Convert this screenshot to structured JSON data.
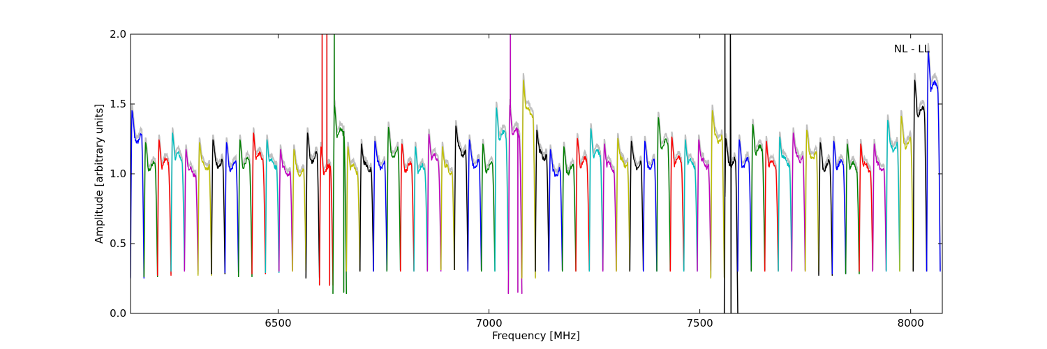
{
  "chart_data": {
    "type": "line",
    "title": "",
    "xlabel": "Frequency [MHz]",
    "ylabel": "Amplitude [arbitrary units]",
    "xlim": [
      6150,
      8075
    ],
    "ylim": [
      0.0,
      2.0
    ],
    "xticks": [
      6500,
      7000,
      7500,
      8000
    ],
    "xtick_labels": [
      "6500",
      "7000",
      "7500",
      "8000"
    ],
    "yticks": [
      0.0,
      0.5,
      1.0,
      1.5,
      2.0
    ],
    "ytick_labels": [
      "0.0",
      "0.5",
      "1.0",
      "1.5",
      "2.0"
    ],
    "grid": false,
    "annotation": "NL - LL",
    "background_color": "#c0c0c0",
    "color_cycle": [
      "#0000ff",
      "#008000",
      "#ff0000",
      "#00bfbf",
      "#bf00bf",
      "#bfbf00",
      "#000000"
    ],
    "channel_width_mhz": 32,
    "band_start_mhz": 6150,
    "channels": [
      {
        "color": "#0000ff",
        "peak": 1.46,
        "low": 0.25
      },
      {
        "color": "#008000",
        "peak": 1.23,
        "low": 0.26
      },
      {
        "color": "#ff0000",
        "peak": 1.25,
        "low": 0.27
      },
      {
        "color": "#00bfbf",
        "peak": 1.3,
        "low": 0.3
      },
      {
        "color": "#bf00bf",
        "peak": 1.18,
        "low": 0.3
      },
      {
        "color": "#bfbf00",
        "peak": 1.23,
        "low": 0.27
      },
      {
        "color": "#000000",
        "peak": 1.25,
        "low": 0.28
      },
      {
        "color": "#0000ff",
        "peak": 1.23,
        "low": 0.29
      },
      {
        "color": "#008000",
        "peak": 1.25,
        "low": 0.26
      },
      {
        "color": "#ff0000",
        "peak": 1.3,
        "low": 0.28
      },
      {
        "color": "#00bfbf",
        "peak": 1.25,
        "low": 0.29
      },
      {
        "color": "#bf00bf",
        "peak": 1.18,
        "low": 0.3
      },
      {
        "color": "#bfbf00",
        "peak": 1.18,
        "low": 0.3
      },
      {
        "color": "#000000",
        "peak": 1.3,
        "low": 0.25
      },
      {
        "color": "#ff0000",
        "peak": 1.2,
        "low": 0.2,
        "spikes": [
          {
            "pos": 0.2,
            "value": 2.0
          },
          {
            "pos": 0.55,
            "value": 2.0
          },
          {
            "pos": 0.75,
            "value": 0.2
          }
        ]
      },
      {
        "color": "#008000",
        "peak": 1.5,
        "low": 0.14,
        "spikes": [
          {
            "pos": 0.1,
            "value": 2.0
          },
          {
            "pos": 0.8,
            "value": 0.15
          }
        ]
      },
      {
        "color": "#bfbf00",
        "peak": 1.2,
        "low": 0.3
      },
      {
        "color": "#000000",
        "peak": 1.22,
        "low": 0.3
      },
      {
        "color": "#0000ff",
        "peak": 1.24,
        "low": 0.3
      },
      {
        "color": "#008000",
        "peak": 1.34,
        "low": 0.3
      },
      {
        "color": "#ff0000",
        "peak": 1.22,
        "low": 0.3
      },
      {
        "color": "#00bfbf",
        "peak": 1.2,
        "low": 0.3
      },
      {
        "color": "#bf00bf",
        "peak": 1.29,
        "low": 0.3
      },
      {
        "color": "#bfbf00",
        "peak": 1.2,
        "low": 0.31
      },
      {
        "color": "#000000",
        "peak": 1.35,
        "low": 0.31
      },
      {
        "color": "#0000ff",
        "peak": 1.25,
        "low": 0.3
      },
      {
        "color": "#008000",
        "peak": 1.22,
        "low": 0.3
      },
      {
        "color": "#00bfbf",
        "peak": 1.48,
        "low": 0.3
      },
      {
        "color": "#bf00bf",
        "peak": 1.5,
        "low": 0.14,
        "spikes": [
          {
            "pos": 0.15,
            "value": 2.0
          },
          {
            "pos": 0.7,
            "value": 0.15
          }
        ]
      },
      {
        "color": "#bfbf00",
        "peak": 1.68,
        "low": 0.25
      },
      {
        "color": "#000000",
        "peak": 1.32,
        "low": 0.3
      },
      {
        "color": "#0000ff",
        "peak": 1.18,
        "low": 0.3
      },
      {
        "color": "#008000",
        "peak": 1.2,
        "low": 0.3
      },
      {
        "color": "#ff0000",
        "peak": 1.26,
        "low": 0.3
      },
      {
        "color": "#00bfbf",
        "peak": 1.33,
        "low": 0.3
      },
      {
        "color": "#bf00bf",
        "peak": 1.22,
        "low": 0.3
      },
      {
        "color": "#bfbf00",
        "peak": 1.26,
        "low": 0.3
      },
      {
        "color": "#000000",
        "peak": 1.24,
        "low": 0.3
      },
      {
        "color": "#0000ff",
        "peak": 1.24,
        "low": 0.3
      },
      {
        "color": "#008000",
        "peak": 1.41,
        "low": 0.3
      },
      {
        "color": "#ff0000",
        "peak": 1.27,
        "low": 0.3
      },
      {
        "color": "#00bfbf",
        "peak": 1.25,
        "low": 0.3
      },
      {
        "color": "#bf00bf",
        "peak": 1.25,
        "low": 0.3
      },
      {
        "color": "#bfbf00",
        "peak": 1.46,
        "low": 0.25
      },
      {
        "color": "#000000",
        "peak": 1.26,
        "low": 0.0,
        "spikes": [
          {
            "pos": 0.05,
            "value": 2.0
          },
          {
            "pos": 0.45,
            "value": 2.0
          },
          {
            "pos": 0.5,
            "value": 0.0
          }
        ]
      },
      {
        "color": "#0000ff",
        "peak": 1.25,
        "low": 0.3
      },
      {
        "color": "#008000",
        "peak": 1.36,
        "low": 0.3
      },
      {
        "color": "#ff0000",
        "peak": 1.24,
        "low": 0.3
      },
      {
        "color": "#00bfbf",
        "peak": 1.27,
        "low": 0.3
      },
      {
        "color": "#bf00bf",
        "peak": 1.3,
        "low": 0.3
      },
      {
        "color": "#bfbf00",
        "peak": 1.32,
        "low": 0.3
      },
      {
        "color": "#000000",
        "peak": 1.23,
        "low": 0.27
      },
      {
        "color": "#0000ff",
        "peak": 1.24,
        "low": 0.28
      },
      {
        "color": "#008000",
        "peak": 1.22,
        "low": 0.28
      },
      {
        "color": "#ff0000",
        "peak": 1.22,
        "low": 0.3
      },
      {
        "color": "#bf00bf",
        "peak": 1.22,
        "low": 0.3
      },
      {
        "color": "#00bfbf",
        "peak": 1.39,
        "low": 0.3
      },
      {
        "color": "#bfbf00",
        "peak": 1.42,
        "low": 0.3
      },
      {
        "color": "#000000",
        "peak": 1.68,
        "low": 0.3
      },
      {
        "color": "#0000ff",
        "peak": 1.89,
        "low": 0.3
      }
    ]
  }
}
